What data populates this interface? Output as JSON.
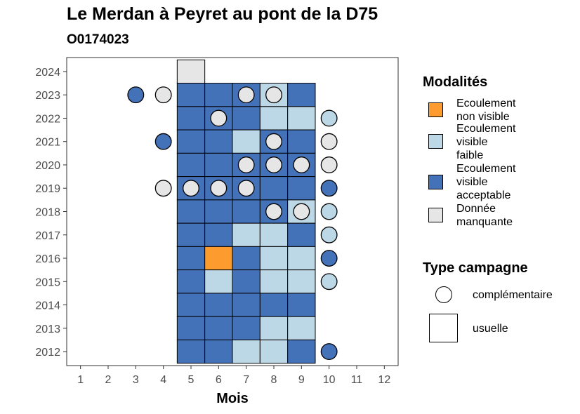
{
  "header": {
    "title": "Le Merdan à Peyret au pont de la D75",
    "subtitle": "O0174023"
  },
  "legend": {
    "modalites_title": "Modalités",
    "modalites": [
      {
        "key": "non_visible",
        "lines": [
          "Ecoulement",
          "non visible"
        ],
        "color": "#fd9b2f"
      },
      {
        "key": "faible",
        "lines": [
          "Ecoulement",
          "visible",
          "faible"
        ],
        "color": "#bcd7e6"
      },
      {
        "key": "acceptable",
        "lines": [
          "Ecoulement",
          "visible",
          "acceptable"
        ],
        "color": "#4472b9"
      },
      {
        "key": "manquante",
        "lines": [
          "Donnée",
          "manquante"
        ],
        "color": "#e6e6e6"
      }
    ],
    "campagne_title": "Type campagne",
    "campagne": [
      {
        "key": "complementaire",
        "label": "complémentaire",
        "shape": "circle"
      },
      {
        "key": "usuelle",
        "label": "usuelle",
        "shape": "square"
      }
    ]
  },
  "chart_data": {
    "type": "heatmap",
    "title": "Le Merdan à Peyret au pont de la D75",
    "subtitle": "O0174023",
    "xlabel": "Mois",
    "ylabel": "",
    "x_ticks": [
      1,
      2,
      3,
      4,
      5,
      6,
      7,
      8,
      9,
      10,
      11,
      12
    ],
    "y_ticks": [
      2012,
      2013,
      2014,
      2015,
      2016,
      2017,
      2018,
      2019,
      2020,
      2021,
      2022,
      2023,
      2024
    ],
    "xlim": [
      0.5,
      12.5
    ],
    "ylim": [
      2011.4,
      2024.6
    ],
    "grid": false,
    "legend_position": "right",
    "colors": {
      "non_visible": "#fd9b2f",
      "faible": "#bcd7e6",
      "acceptable": "#4472b9",
      "manquante": "#e6e6e6"
    },
    "usuelle": [
      {
        "year": 2024,
        "months": {
          "5": "manquante"
        }
      },
      {
        "year": 2023,
        "months": {
          "5": "acceptable",
          "6": "acceptable",
          "7": "acceptable",
          "8": "faible",
          "9": "acceptable"
        }
      },
      {
        "year": 2022,
        "months": {
          "5": "acceptable",
          "6": "acceptable",
          "7": "acceptable",
          "8": "faible",
          "9": "faible"
        }
      },
      {
        "year": 2021,
        "months": {
          "5": "acceptable",
          "6": "acceptable",
          "7": "faible",
          "8": "acceptable",
          "9": "acceptable"
        }
      },
      {
        "year": 2020,
        "months": {
          "5": "acceptable",
          "6": "acceptable",
          "7": "acceptable",
          "8": "acceptable",
          "9": "acceptable"
        }
      },
      {
        "year": 2019,
        "months": {
          "5": "acceptable",
          "6": "acceptable",
          "7": "acceptable",
          "8": "acceptable",
          "9": "acceptable"
        }
      },
      {
        "year": 2018,
        "months": {
          "5": "acceptable",
          "6": "acceptable",
          "7": "acceptable",
          "8": "acceptable",
          "9": "faible"
        }
      },
      {
        "year": 2017,
        "months": {
          "5": "acceptable",
          "6": "acceptable",
          "7": "faible",
          "8": "faible",
          "9": "acceptable"
        }
      },
      {
        "year": 2016,
        "months": {
          "5": "acceptable",
          "6": "non_visible",
          "7": "acceptable",
          "8": "faible",
          "9": "faible"
        }
      },
      {
        "year": 2015,
        "months": {
          "5": "acceptable",
          "6": "faible",
          "7": "acceptable",
          "8": "faible",
          "9": "faible"
        }
      },
      {
        "year": 2014,
        "months": {
          "5": "acceptable",
          "6": "acceptable",
          "7": "acceptable",
          "8": "acceptable",
          "9": "acceptable"
        }
      },
      {
        "year": 2013,
        "months": {
          "5": "acceptable",
          "6": "acceptable",
          "7": "acceptable",
          "8": "faible",
          "9": "faible"
        }
      },
      {
        "year": 2012,
        "months": {
          "5": "acceptable",
          "6": "acceptable",
          "7": "faible",
          "8": "faible",
          "9": "acceptable"
        }
      }
    ],
    "complementaire": [
      {
        "year": 2023,
        "month": 3,
        "value": "acceptable"
      },
      {
        "year": 2023,
        "month": 4,
        "value": "manquante"
      },
      {
        "year": 2023,
        "month": 7,
        "value": "manquante"
      },
      {
        "year": 2023,
        "month": 8,
        "value": "manquante"
      },
      {
        "year": 2022,
        "month": 6,
        "value": "manquante"
      },
      {
        "year": 2022,
        "month": 10,
        "value": "faible"
      },
      {
        "year": 2021,
        "month": 4,
        "value": "acceptable"
      },
      {
        "year": 2021,
        "month": 8,
        "value": "manquante"
      },
      {
        "year": 2021,
        "month": 10,
        "value": "manquante"
      },
      {
        "year": 2020,
        "month": 7,
        "value": "manquante"
      },
      {
        "year": 2020,
        "month": 8,
        "value": "manquante"
      },
      {
        "year": 2020,
        "month": 9,
        "value": "manquante"
      },
      {
        "year": 2020,
        "month": 10,
        "value": "manquante"
      },
      {
        "year": 2019,
        "month": 4,
        "value": "manquante"
      },
      {
        "year": 2019,
        "month": 5,
        "value": "manquante"
      },
      {
        "year": 2019,
        "month": 6,
        "value": "manquante"
      },
      {
        "year": 2019,
        "month": 7,
        "value": "manquante"
      },
      {
        "year": 2019,
        "month": 10,
        "value": "acceptable"
      },
      {
        "year": 2018,
        "month": 8,
        "value": "manquante"
      },
      {
        "year": 2018,
        "month": 9,
        "value": "manquante"
      },
      {
        "year": 2018,
        "month": 10,
        "value": "faible"
      },
      {
        "year": 2017,
        "month": 10,
        "value": "faible"
      },
      {
        "year": 2016,
        "month": 10,
        "value": "acceptable"
      },
      {
        "year": 2015,
        "month": 10,
        "value": "faible"
      },
      {
        "year": 2012,
        "month": 10,
        "value": "acceptable"
      }
    ]
  }
}
